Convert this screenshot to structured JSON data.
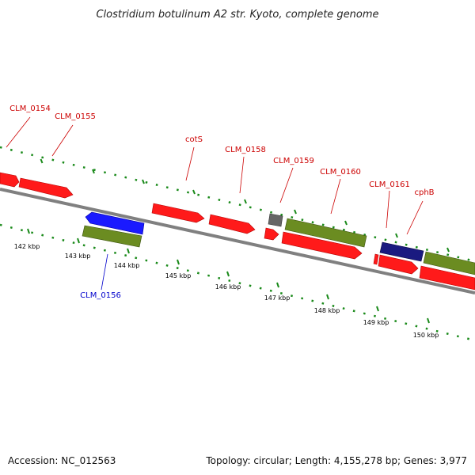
{
  "title": "Clostridium botulinum A2 str. Kyoto, complete genome",
  "footer": {
    "accession": "Accession: NC_012563",
    "summary": "Topology: circular; Length: 4,155,278 bp; Genes: 3,977"
  },
  "colors": {
    "backbone": "#808080",
    "ruler": "#1a8a1a",
    "label_forward": "#cc0000",
    "label_reverse": "#0000cc",
    "gene_red": "#ff1a1a",
    "gene_olive": "#6b8c21",
    "gene_blue": "#1a1aff",
    "gene_navy": "#1a1a80",
    "gene_gray": "#666666"
  },
  "ticks": [
    {
      "label": "142 kbp"
    },
    {
      "label": "143 kbp"
    },
    {
      "label": "144 kbp"
    },
    {
      "label": "145 kbp"
    },
    {
      "label": "146 kbp"
    },
    {
      "label": "147 kbp"
    },
    {
      "label": "148 kbp"
    },
    {
      "label": "149 kbp"
    },
    {
      "label": "150 kbp"
    }
  ],
  "gene_labels": [
    {
      "text": "CLM_0154",
      "strand": "forward"
    },
    {
      "text": "CLM_0155",
      "strand": "forward"
    },
    {
      "text": "cotS",
      "strand": "forward"
    },
    {
      "text": "CLM_0158",
      "strand": "forward"
    },
    {
      "text": "CLM_0159",
      "strand": "forward"
    },
    {
      "text": "CLM_0160",
      "strand": "forward"
    },
    {
      "text": "CLM_0161",
      "strand": "forward"
    },
    {
      "text": "cphB",
      "strand": "forward"
    },
    {
      "text": "CLM_0156",
      "strand": "reverse"
    }
  ]
}
